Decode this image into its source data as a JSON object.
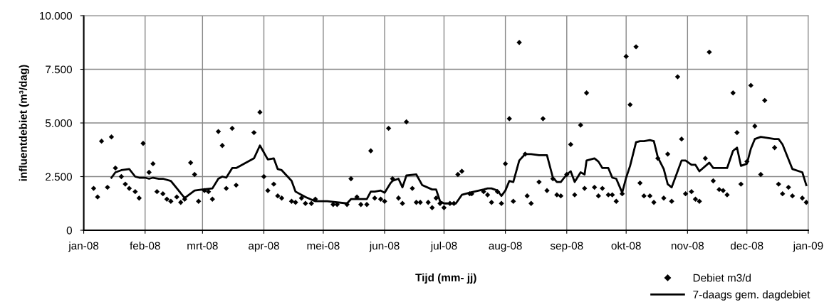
{
  "chart_data": {
    "type": "scatter",
    "xlabel": "Tijd (mm- jj)",
    "ylabel": "influentdebiet (m³/dag)",
    "xlim": [
      "2008-01-01",
      "2009-01-01"
    ],
    "xticks": [
      {
        "value": "2008-01-01",
        "label": "jan-08"
      },
      {
        "value": "2008-02-01",
        "label": "feb-08"
      },
      {
        "value": "2008-03-01",
        "label": "mrt-08"
      },
      {
        "value": "2008-04-01",
        "label": "apr-08"
      },
      {
        "value": "2008-05-01",
        "label": "mei-08"
      },
      {
        "value": "2008-06-01",
        "label": "jun-08"
      },
      {
        "value": "2008-07-01",
        "label": "jul-08"
      },
      {
        "value": "2008-08-01",
        "label": "aug-08"
      },
      {
        "value": "2008-09-01",
        "label": "sep-08"
      },
      {
        "value": "2008-10-01",
        "label": "okt-08"
      },
      {
        "value": "2008-11-01",
        "label": "nov-08"
      },
      {
        "value": "2008-12-01",
        "label": "dec-08"
      },
      {
        "value": "2009-01-01",
        "label": "jan-09"
      }
    ],
    "ylim": [
      0,
      10000
    ],
    "yticks": [
      0,
      {
        "value": 2500,
        "label": "2.500"
      },
      {
        "value": 5000,
        "label": "5.000"
      },
      {
        "value": 7500,
        "label": "7.500"
      },
      {
        "value": 10000,
        "label": "10.000"
      }
    ],
    "grid": true,
    "legend": "bottom right",
    "series": [
      {
        "name": "Debiet m3/d",
        "marker": "diamond",
        "color": "#000000",
        "x": [
          "2008-01-06",
          "2008-01-08",
          "2008-01-10",
          "2008-01-13",
          "2008-01-15",
          "2008-01-17",
          "2008-01-20",
          "2008-01-22",
          "2008-01-24",
          "2008-01-27",
          "2008-01-29",
          "2008-01-31",
          "2008-02-03",
          "2008-02-05",
          "2008-02-07",
          "2008-02-10",
          "2008-02-12",
          "2008-02-14",
          "2008-02-17",
          "2008-02-19",
          "2008-02-21",
          "2008-02-24",
          "2008-02-26",
          "2008-02-28",
          "2008-03-02",
          "2008-03-04",
          "2008-03-06",
          "2008-03-09",
          "2008-03-11",
          "2008-03-13",
          "2008-03-16",
          "2008-03-18",
          "2008-03-27",
          "2008-03-30",
          "2008-04-01",
          "2008-04-03",
          "2008-04-06",
          "2008-04-08",
          "2008-04-10",
          "2008-04-15",
          "2008-04-17",
          "2008-04-20",
          "2008-04-22",
          "2008-04-25",
          "2008-04-27",
          "2008-05-06",
          "2008-05-08",
          "2008-05-13",
          "2008-05-15",
          "2008-05-18",
          "2008-05-20",
          "2008-05-23",
          "2008-05-25",
          "2008-05-27",
          "2008-05-30",
          "2008-06-01",
          "2008-06-03",
          "2008-06-05",
          "2008-06-08",
          "2008-06-10",
          "2008-06-12",
          "2008-06-15",
          "2008-06-17",
          "2008-06-19",
          "2008-06-23",
          "2008-06-25",
          "2008-06-27",
          "2008-06-29",
          "2008-07-01",
          "2008-07-04",
          "2008-07-06",
          "2008-07-08",
          "2008-07-10",
          "2008-07-14",
          "2008-07-15",
          "2008-07-21",
          "2008-07-23",
          "2008-07-25",
          "2008-07-28",
          "2008-07-30",
          "2008-08-01",
          "2008-08-03",
          "2008-08-05",
          "2008-08-08",
          "2008-08-11",
          "2008-08-12",
          "2008-08-14",
          "2008-08-18",
          "2008-08-20",
          "2008-08-22",
          "2008-08-25",
          "2008-08-27",
          "2008-08-29",
          "2008-09-01",
          "2008-09-03",
          "2008-09-05",
          "2008-09-08",
          "2008-09-10",
          "2008-09-11",
          "2008-09-15",
          "2008-09-17",
          "2008-09-19",
          "2008-09-22",
          "2008-09-24",
          "2008-09-26",
          "2008-09-29",
          "2008-10-01",
          "2008-10-03",
          "2008-10-06",
          "2008-10-08",
          "2008-10-10",
          "2008-10-13",
          "2008-10-15",
          "2008-10-17",
          "2008-10-20",
          "2008-10-22",
          "2008-10-24",
          "2008-10-27",
          "2008-10-29",
          "2008-10-31",
          "2008-11-03",
          "2008-11-05",
          "2008-11-07",
          "2008-11-10",
          "2008-11-12",
          "2008-11-14",
          "2008-11-17",
          "2008-11-19",
          "2008-11-21",
          "2008-11-24",
          "2008-11-26",
          "2008-11-28",
          "2008-12-01",
          "2008-12-03",
          "2008-12-05",
          "2008-12-08",
          "2008-12-10",
          "2008-12-15",
          "2008-12-17",
          "2008-12-19",
          "2008-12-22",
          "2008-12-24",
          "2008-12-29",
          "2008-12-31"
        ],
        "values": [
          1950,
          1550,
          4150,
          2000,
          4350,
          2900,
          2500,
          2150,
          1950,
          1800,
          1500,
          4050,
          2700,
          3100,
          1800,
          1700,
          1450,
          1350,
          1550,
          1300,
          1450,
          3150,
          2600,
          1350,
          1850,
          1800,
          1450,
          4600,
          3950,
          1950,
          4750,
          2100,
          4550,
          5500,
          2500,
          1850,
          2150,
          1600,
          1500,
          1350,
          1300,
          1500,
          1250,
          1250,
          1450,
          1200,
          1200,
          1200,
          2400,
          1550,
          1200,
          1200,
          3700,
          1500,
          1450,
          1350,
          4750,
          2400,
          1500,
          1250,
          5050,
          1950,
          1300,
          1300,
          1300,
          1050,
          1500,
          1250,
          1050,
          1250,
          1250,
          2600,
          2750,
          1700,
          1700,
          1800,
          1650,
          1300,
          1800,
          1250,
          3100,
          5200,
          1350,
          8750,
          3550,
          1600,
          1250,
          2250,
          5200,
          1850,
          2400,
          1650,
          1600,
          2600,
          4000,
          1650,
          4900,
          1950,
          6400,
          2000,
          1600,
          1950,
          1650,
          1650,
          1350,
          1700,
          8100,
          5850,
          8550,
          2200,
          1600,
          1600,
          1300,
          3350,
          1500,
          3550,
          1350,
          7150,
          4250,
          1700,
          1800,
          1450,
          1350,
          3350,
          8300,
          2300,
          1900,
          1850,
          1650,
          6400,
          4550,
          2150,
          3200,
          6750,
          4850,
          2600,
          6050,
          3850,
          2150,
          1700,
          2000,
          1600,
          1500,
          1300
        ]
      },
      {
        "name": "7-daags gem. dagdebiet",
        "type": "line",
        "line_style": "solid",
        "color": "#000000",
        "x": [
          "2008-01-15",
          "2008-01-17",
          "2008-01-20",
          "2008-01-24",
          "2008-01-27",
          "2008-01-29",
          "2008-02-01",
          "2008-02-03",
          "2008-02-05",
          "2008-02-08",
          "2008-02-10",
          "2008-02-14",
          "2008-02-21",
          "2008-02-26",
          "2008-03-01",
          "2008-03-06",
          "2008-03-09",
          "2008-03-11",
          "2008-03-13",
          "2008-03-16",
          "2008-03-18",
          "2008-03-27",
          "2008-03-30",
          "2008-04-03",
          "2008-04-06",
          "2008-04-08",
          "2008-04-10",
          "2008-04-15",
          "2008-04-17",
          "2008-04-20",
          "2008-04-22",
          "2008-04-27",
          "2008-05-03",
          "2008-05-13",
          "2008-05-15",
          "2008-05-23",
          "2008-05-25",
          "2008-05-27",
          "2008-05-30",
          "2008-06-01",
          "2008-06-04",
          "2008-06-05",
          "2008-06-08",
          "2008-06-10",
          "2008-06-12",
          "2008-06-17",
          "2008-06-20",
          "2008-06-25",
          "2008-06-27",
          "2008-06-29",
          "2008-07-01",
          "2008-07-07",
          "2008-07-10",
          "2008-07-14",
          "2008-07-21",
          "2008-07-23",
          "2008-07-25",
          "2008-07-28",
          "2008-07-30",
          "2008-08-01",
          "2008-08-03",
          "2008-08-05",
          "2008-08-08",
          "2008-08-11",
          "2008-08-14",
          "2008-08-18",
          "2008-08-22",
          "2008-08-25",
          "2008-08-27",
          "2008-08-29",
          "2008-09-01",
          "2008-09-03",
          "2008-09-05",
          "2008-09-08",
          "2008-09-10",
          "2008-09-11",
          "2008-09-15",
          "2008-09-17",
          "2008-09-19",
          "2008-09-22",
          "2008-09-24",
          "2008-09-26",
          "2008-09-29",
          "2008-10-01",
          "2008-10-03",
          "2008-10-06",
          "2008-10-08",
          "2008-10-10",
          "2008-10-13",
          "2008-10-15",
          "2008-10-17",
          "2008-10-20",
          "2008-10-22",
          "2008-10-24",
          "2008-10-29",
          "2008-10-31",
          "2008-11-03",
          "2008-11-05",
          "2008-11-07",
          "2008-11-12",
          "2008-11-14",
          "2008-11-21",
          "2008-11-24",
          "2008-11-26",
          "2008-11-28",
          "2008-12-01",
          "2008-12-03",
          "2008-12-05",
          "2008-12-08",
          "2008-12-15",
          "2008-12-17",
          "2008-12-19",
          "2008-12-24",
          "2008-12-29",
          "2008-12-31"
        ],
        "values": [
          2450,
          2700,
          2800,
          2850,
          2500,
          2450,
          2450,
          2400,
          2450,
          2400,
          2400,
          2300,
          1500,
          1850,
          1900,
          1950,
          2400,
          2500,
          2450,
          2900,
          2900,
          3350,
          3950,
          3300,
          3350,
          2850,
          2800,
          2300,
          1800,
          1650,
          1550,
          1350,
          1350,
          1250,
          1450,
          1450,
          1800,
          1800,
          1850,
          1750,
          2200,
          2300,
          2400,
          2000,
          2550,
          2600,
          2100,
          1900,
          1900,
          1350,
          1250,
          1250,
          1650,
          1750,
          1900,
          1950,
          1950,
          1850,
          1600,
          1850,
          2300,
          2250,
          3250,
          3550,
          3550,
          3500,
          3500,
          2450,
          2250,
          2250,
          2600,
          2750,
          2250,
          2700,
          2600,
          3250,
          3350,
          3200,
          2900,
          2900,
          2450,
          2400,
          1750,
          2450,
          3000,
          4100,
          4150,
          4150,
          4200,
          4150,
          3400,
          2850,
          2150,
          2000,
          3250,
          3250,
          3050,
          3050,
          2750,
          3150,
          2900,
          2900,
          3700,
          3850,
          3000,
          3100,
          3800,
          4250,
          4350,
          4250,
          4250,
          4000,
          2850,
          2700,
          2100
        ]
      }
    ]
  }
}
